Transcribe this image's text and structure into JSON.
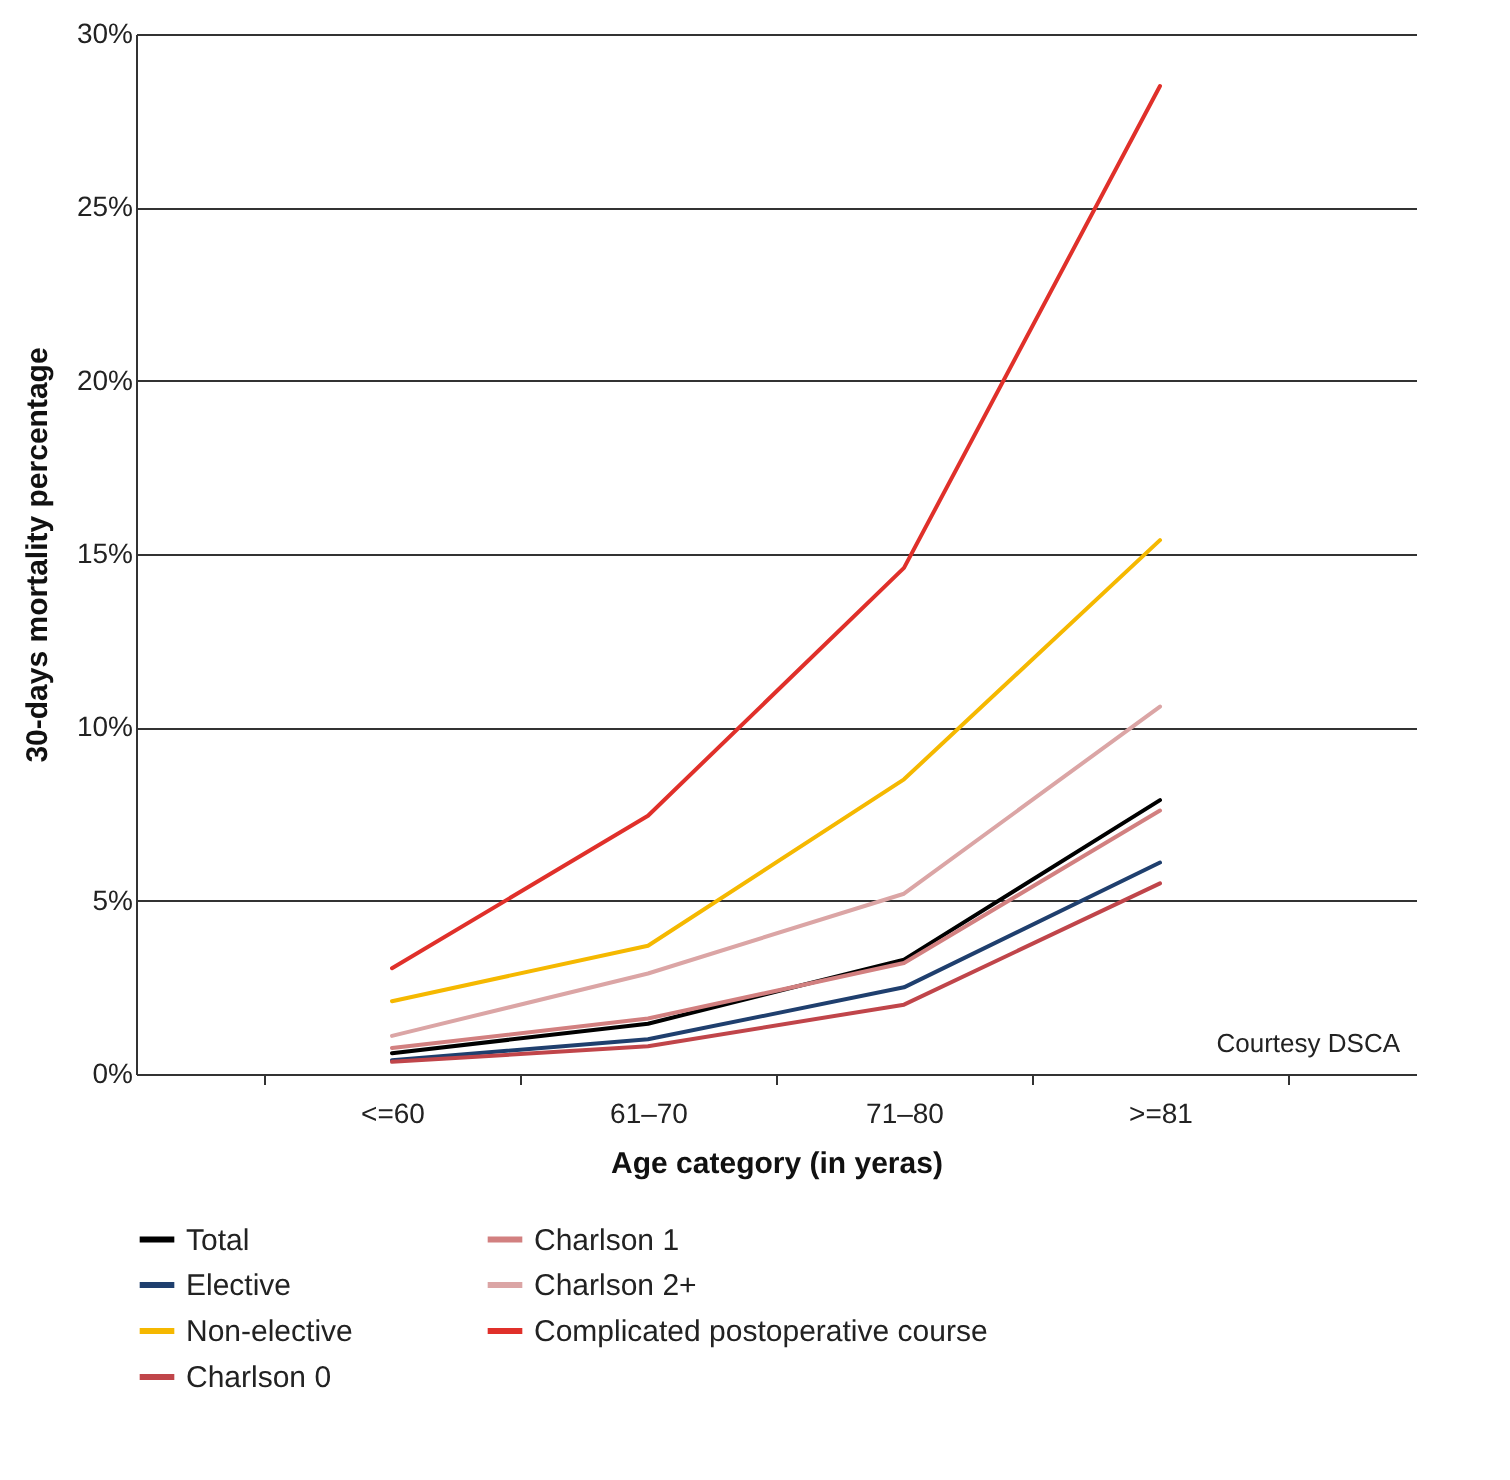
{
  "chart_data": {
    "type": "line",
    "xlabel": "Age category (in yeras)",
    "ylabel": "30-days mortality percentage",
    "categories": [
      "<=60",
      "61–70",
      "71–80",
      ">=81"
    ],
    "series": [
      {
        "name": "Total",
        "color": "#000000",
        "values": [
          0.6,
          1.45,
          3.3,
          7.9
        ]
      },
      {
        "name": "Elective",
        "color": "#1f3f6e",
        "values": [
          0.4,
          1.0,
          2.5,
          6.1
        ]
      },
      {
        "name": "Non-elective",
        "color": "#f5b800",
        "values": [
          2.1,
          3.7,
          8.5,
          15.4
        ]
      },
      {
        "name": "Charlson 0",
        "color": "#c0454a",
        "values": [
          0.35,
          0.8,
          2.0,
          5.5
        ]
      },
      {
        "name": "Charlson 1",
        "color": "#d28080",
        "values": [
          0.75,
          1.6,
          3.2,
          7.6
        ]
      },
      {
        "name": "Charlson 2+",
        "color": "#dba5a5",
        "values": [
          1.1,
          2.9,
          5.2,
          10.6
        ]
      },
      {
        "name": "Complicated postoperative course",
        "color": "#e0302a",
        "values": [
          3.05,
          7.45,
          14.6,
          28.5
        ]
      }
    ],
    "ylim": [
      0,
      30
    ],
    "yticks": [
      {
        "value": 0,
        "label": "0%"
      },
      {
        "value": 5,
        "label": "5%"
      },
      {
        "value": 10,
        "label": "10%"
      },
      {
        "value": 15,
        "label": "15%"
      },
      {
        "value": 20,
        "label": "20%"
      },
      {
        "value": 25,
        "label": "25%"
      },
      {
        "value": 30,
        "label": "30%"
      }
    ],
    "grid": "y",
    "legend": "bottom",
    "line_style": "solid",
    "marker": "none",
    "annotations": [
      "Courtesy DSCA"
    ]
  }
}
